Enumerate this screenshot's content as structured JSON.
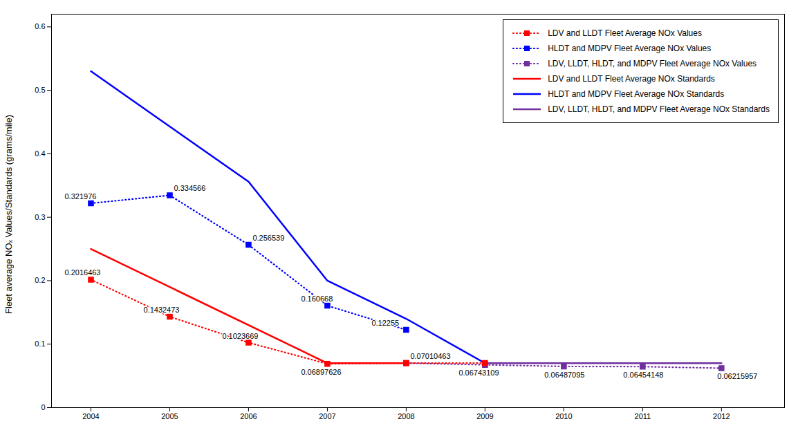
{
  "chart_data": {
    "type": "line",
    "ylabel": "Fleet average NOₓ Values/Standards (grams/mile)",
    "xlim": [
      2003.5,
      2012.8
    ],
    "xticks": [
      2004,
      2005,
      2006,
      2007,
      2008,
      2009,
      2010,
      2011,
      2012
    ],
    "ylim": [
      0,
      0.62
    ],
    "yticks": [
      0,
      0.1,
      0.2,
      0.3,
      0.4,
      0.5,
      0.6
    ],
    "grid": false,
    "legend": "upper right",
    "series": [
      {
        "name": "LDV and LLDT Fleet Average NOx Values",
        "color": "#FF0000",
        "line_style": "dotted",
        "marker": "square",
        "x": [
          2004,
          2005,
          2006,
          2007,
          2008,
          2009
        ],
        "values": [
          0.2016463,
          0.1432473,
          0.1023669,
          0.06897626,
          0.07010463,
          0.07010463
        ]
      },
      {
        "name": "HLDT and MDPV Fleet Average NOx Values",
        "color": "#0000FF",
        "line_style": "dotted",
        "marker": "square",
        "x": [
          2004,
          2005,
          2006,
          2007,
          2008
        ],
        "values": [
          0.321976,
          0.334566,
          0.256539,
          0.160668,
          0.12255
        ]
      },
      {
        "name": "LDV, LLDT, HLDT, and MDPV Fleet Average NOx Values",
        "color": "#7030A0",
        "line_style": "dotted",
        "marker": "square",
        "x": [
          2008,
          2009,
          2010,
          2011,
          2012
        ],
        "values": [
          0.07010463,
          0.06743109,
          0.06487095,
          0.06454148,
          0.06215957
        ]
      },
      {
        "name": "LDV and LLDT Fleet Average NOx Standards",
        "color": "#FF0000",
        "line_style": "solid",
        "x": [
          2004,
          2007,
          2008
        ],
        "values": [
          0.25,
          0.07,
          0.07
        ]
      },
      {
        "name": "HLDT and MDPV Fleet Average NOx Standards",
        "color": "#0000FF",
        "line_style": "solid",
        "x": [
          2004,
          2005,
          2006,
          2007,
          2008,
          2009
        ],
        "values": [
          0.53,
          0.443,
          0.356,
          0.2,
          0.14,
          0.07
        ]
      },
      {
        "name": "LDV, LLDT, HLDT, and MDPV Fleet Average NOx Standards",
        "color": "#7030A0",
        "line_style": "solid",
        "x": [
          2009,
          2010,
          2011,
          2012
        ],
        "values": [
          0.07,
          0.07,
          0.07,
          0.07
        ]
      }
    ],
    "annotations": [
      {
        "x": 2004,
        "y": 0.2016463,
        "text": "0.2016463"
      },
      {
        "x": 2005,
        "y": 0.1432473,
        "text": "0.1432473"
      },
      {
        "x": 2006,
        "y": 0.1023669,
        "text": "0.1023669"
      },
      {
        "x": 2007,
        "y": 0.06897626,
        "text": "0.06897626"
      },
      {
        "x": 2008,
        "y": 0.07010463,
        "text": "0.07010463"
      },
      {
        "x": 2004,
        "y": 0.321976,
        "text": "0.321976"
      },
      {
        "x": 2005,
        "y": 0.334566,
        "text": "0.334566"
      },
      {
        "x": 2006,
        "y": 0.256539,
        "text": "0.256539"
      },
      {
        "x": 2007,
        "y": 0.160668,
        "text": "0.160668"
      },
      {
        "x": 2008,
        "y": 0.12255,
        "text": "0.12255"
      },
      {
        "x": 2009,
        "y": 0.06743109,
        "text": "0.06743109"
      },
      {
        "x": 2010,
        "y": 0.06487095,
        "text": "0.06487095"
      },
      {
        "x": 2011,
        "y": 0.06454148,
        "text": "0.06454148"
      },
      {
        "x": 2012,
        "y": 0.06215957,
        "text": "0.06215957"
      }
    ]
  }
}
